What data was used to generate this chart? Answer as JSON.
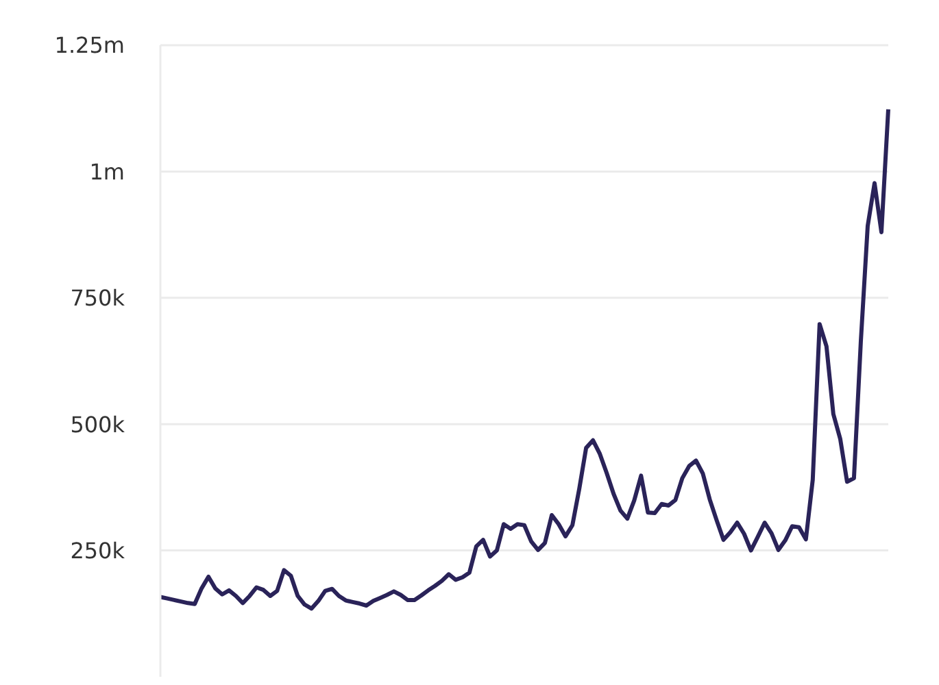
{
  "chart_data": {
    "type": "line",
    "categories": [
      null,
      null,
      null,
      null,
      null,
      null,
      null,
      null,
      null,
      null,
      null,
      null,
      null,
      null,
      null,
      null,
      null,
      null,
      null,
      null,
      null,
      null,
      null,
      null,
      null,
      null,
      null,
      null,
      null,
      null,
      null,
      null,
      null,
      null,
      null,
      null,
      null,
      null,
      null,
      null,
      null,
      null,
      null,
      null,
      null,
      null,
      null,
      null,
      null,
      null,
      null,
      null,
      null,
      null,
      null,
      null,
      null,
      null,
      null,
      null,
      null,
      null,
      null,
      null,
      null,
      null,
      null,
      null,
      null,
      null,
      null,
      null,
      null,
      null,
      null,
      null,
      null,
      null,
      null,
      null,
      null,
      null,
      null,
      null,
      null,
      null,
      null,
      null,
      null,
      null,
      null,
      null,
      null,
      null,
      null,
      null,
      null,
      null,
      null,
      null,
      null,
      null,
      null,
      null,
      null,
      null,
      null
    ],
    "series": [
      {
        "color": "#2a2359",
        "values": [
          158000,
          155000,
          152000,
          149000,
          146000,
          144000,
          175000,
          198000,
          175000,
          163000,
          171000,
          160000,
          146000,
          160000,
          177000,
          172000,
          160000,
          170000,
          211000,
          200000,
          160000,
          143000,
          135000,
          150000,
          170000,
          174000,
          160000,
          151000,
          148000,
          145000,
          141000,
          150000,
          156000,
          162000,
          169000,
          162000,
          152000,
          152000,
          161000,
          171000,
          180000,
          190000,
          203000,
          192000,
          197000,
          206000,
          258000,
          271000,
          238000,
          250000,
          302000,
          293000,
          302000,
          300000,
          268000,
          251000,
          265000,
          320000,
          302000,
          278000,
          300000,
          372000,
          453000,
          468000,
          441000,
          403000,
          362000,
          329000,
          313000,
          349000,
          398000,
          325000,
          324000,
          342000,
          339000,
          350000,
          393000,
          417000,
          428000,
          402000,
          351000,
          310000,
          271000,
          286000,
          305000,
          283000,
          250000,
          277000,
          305000,
          284000,
          251000,
          270000,
          298000,
          296000,
          272000,
          390000,
          698000,
          654000,
          520000,
          471000,
          386000,
          393000,
          663000,
          892000,
          977000,
          880000,
          1123000
        ]
      }
    ],
    "ylim": [
      0,
      1250000
    ],
    "yticks": [
      {
        "value": 250000,
        "label": "250k"
      },
      {
        "value": 500000,
        "label": "500k"
      },
      {
        "value": 750000,
        "label": "750k"
      },
      {
        "value": 1000000,
        "label": "1m"
      },
      {
        "value": 1250000,
        "label": "1.25m"
      }
    ],
    "tick_labels": "y",
    "grid": "y",
    "marker": "none",
    "line_style": "solid",
    "legend": false
  }
}
